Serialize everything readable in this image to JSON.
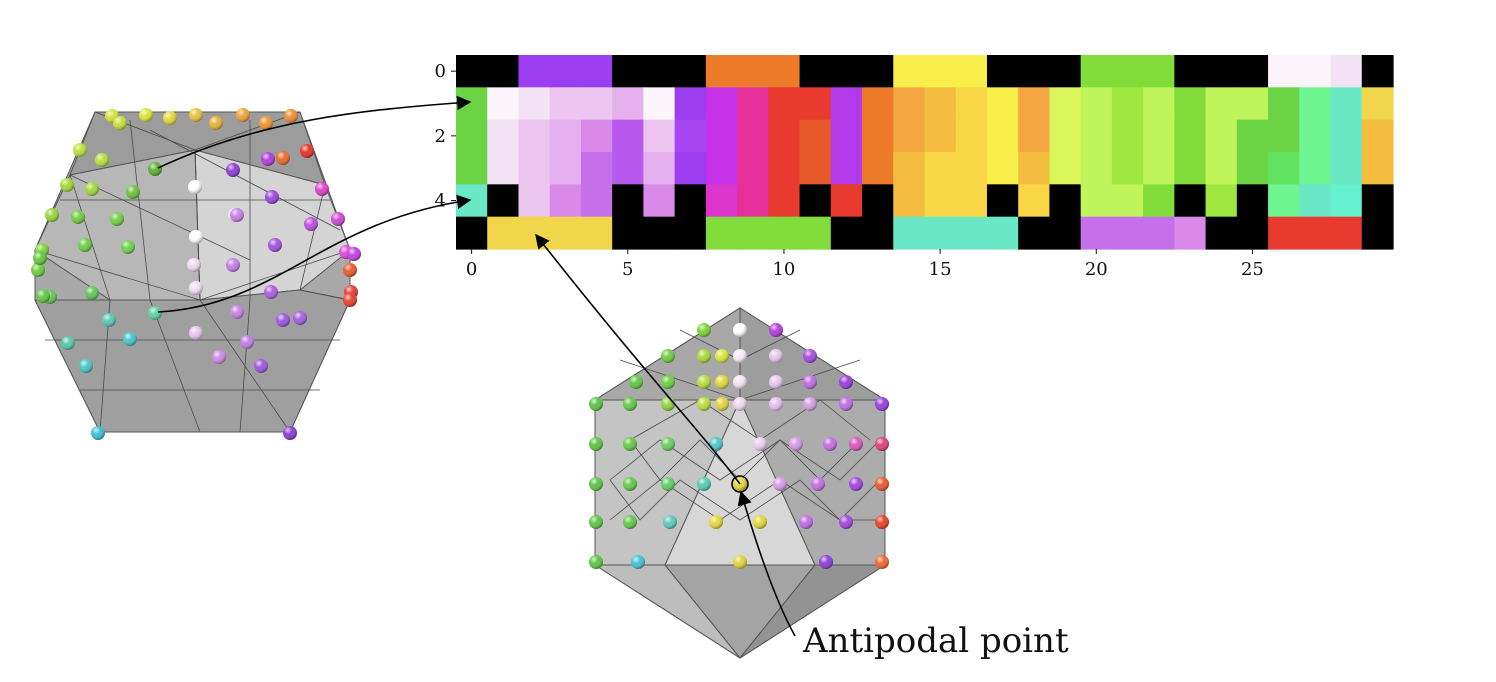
{
  "annotation": {
    "antipodal_label": "Antipodal point"
  },
  "chart_data": {
    "type": "heatmap",
    "cols": 30,
    "rows": 6,
    "x_ticks": [
      0,
      5,
      10,
      15,
      20,
      25
    ],
    "y_ticks": [
      0,
      2,
      4
    ],
    "palette": {
      "K": "#000000",
      "a": "#9b3ef0",
      "b": "#a645f1",
      "c": "#b659ec",
      "d": "#c56fea",
      "e": "#d989e8",
      "f": "#e6b0ef",
      "g": "#ecc6f0",
      "h": "#f3e2f4",
      "i": "#fbf5fb",
      "j": "#b33bea",
      "k": "#c532e8",
      "l": "#dc35ce",
      "m": "#e5309c",
      "n": "#e83a2e",
      "o": "#e85a2a",
      "p": "#ee7b2a",
      "q": "#f4a640",
      "r": "#f5bd40",
      "s": "#f8d646",
      "t": "#f9ef4b",
      "u": "#eef758",
      "v": "#d9f55a",
      "w": "#bff55a",
      "x": "#9fe83f",
      "y": "#82dc3c",
      "z": "#6bd444",
      "A": "#61e35f",
      "B": "#6cf590",
      "C": "#6ae7c5",
      "D": "#66f3cf",
      "E": "#f1d54a"
    },
    "grid": [
      "KKaaaKKKpppKKKtttKKKyyyKKKiihK",
      "zihggfiakmnnjpqrstqvwxwywwzBCE",
      "zhgfecgbkmnojpqrstqvwxwywzzBCr",
      "zhgfdcfakmnojprsstrvwxwywzABCr",
      "CKgedKeKlmnKnKrssKsKwwyKxKBCDK",
      "KEEEEKKKyyyyKKCCCCKKdddeKKnnnK"
    ]
  },
  "left_polyhedron": {
    "dots": [
      {
        "c": "#d6e33a"
      },
      {
        "c": "#d9e43b"
      },
      {
        "c": "#e3d83b"
      },
      {
        "c": "#eac23d"
      },
      {
        "c": "#efa33a"
      },
      {
        "c": "#ef8f33"
      },
      {
        "c": "#bde03c"
      },
      {
        "c": "#c7e03c"
      },
      {
        "c": "#e6b33a"
      },
      {
        "c": "#ee9535"
      },
      {
        "c": "#ec6c2e"
      },
      {
        "c": "#e8342c"
      },
      {
        "c": "#a8d93d"
      },
      {
        "c": "#b7de3d"
      },
      {
        "c": "#5fb02f"
      },
      {
        "c": "#ffffff"
      },
      {
        "c": "#8b3fd9"
      },
      {
        "c": "#b23ee0"
      },
      {
        "c": "#e040c8"
      },
      {
        "c": "#97d63d"
      },
      {
        "c": "#a0d83e"
      },
      {
        "c": "#6ec33b"
      },
      {
        "c": "#f2e6f2"
      },
      {
        "c": "#9b48df"
      },
      {
        "c": "#c04ee0"
      },
      {
        "c": "#7fd23c"
      },
      {
        "c": "#74cf3f"
      },
      {
        "c": "#72cf45"
      },
      {
        "c": "#ffffff"
      },
      {
        "c": "#c782e6"
      },
      {
        "c": "#a552e0"
      },
      {
        "c": "#d249d6"
      },
      {
        "c": "#72cc43"
      },
      {
        "c": "#6dcf4a"
      },
      {
        "c": "#6fd152"
      },
      {
        "c": "#f0d9f0"
      },
      {
        "c": "#c37ee5"
      },
      {
        "c": "#b15ee0"
      },
      {
        "c": "#65c652"
      },
      {
        "c": "#63c85a"
      },
      {
        "c": "#5ed2a8"
      },
      {
        "c": "#f3def3"
      },
      {
        "c": "#c885e5"
      },
      {
        "c": "#a860e0"
      },
      {
        "c": "#e24040"
      },
      {
        "c": "#57c7ac"
      },
      {
        "c": "#5ac9b3"
      },
      {
        "c": "#e9c6ee"
      },
      {
        "c": "#c47ee6"
      },
      {
        "c": "#9d58de"
      },
      {
        "c": "#4cc7c4"
      },
      {
        "c": "#48c5cf"
      },
      {
        "c": "#d08ae8"
      },
      {
        "c": "#a058de"
      },
      {
        "c": "#3cc0d6"
      },
      {
        "c": "#8b3ed8"
      },
      {
        "c": "#63c93e"
      },
      {
        "c": "#62c84a"
      },
      {
        "c": "#ee5a2e"
      },
      {
        "c": "#e9432c"
      },
      {
        "c": "#d94fd8"
      },
      {
        "c": "#c63fe0"
      }
    ]
  },
  "bottom_polyhedron": {
    "dots": [
      {
        "c": "#7fd23c"
      },
      {
        "c": "#c4e03c"
      },
      {
        "c": "#ffffff"
      },
      {
        "c": "#b23ee0"
      },
      {
        "c": "#6fcf40"
      },
      {
        "c": "#a8d93d"
      },
      {
        "c": "#d9e43b"
      },
      {
        "c": "#f5e8f5"
      },
      {
        "c": "#e8c8ee"
      },
      {
        "c": "#a54de0"
      },
      {
        "c": "#64c94a"
      },
      {
        "c": "#6fcf40"
      },
      {
        "c": "#b7de3d"
      },
      {
        "c": "#e2d83b"
      },
      {
        "c": "#f2e4f2"
      },
      {
        "c": "#e8c8ee"
      },
      {
        "c": "#c06ee5"
      },
      {
        "c": "#9a40de"
      },
      {
        "c": "#5fc546"
      },
      {
        "c": "#64c94a"
      },
      {
        "c": "#8fd43d"
      },
      {
        "c": "#b9de3d"
      },
      {
        "c": "#e0d43e"
      },
      {
        "c": "#efd7f0"
      },
      {
        "c": "#e4c0ee"
      },
      {
        "c": "#d4a0e8"
      },
      {
        "c": "#bd6ee4"
      },
      {
        "c": "#9a40de"
      },
      {
        "c": "#5fc546"
      },
      {
        "c": "#64c94a"
      },
      {
        "c": "#6dcf63"
      },
      {
        "c": "#58c9b0"
      },
      {
        "c": "#4fc7c8"
      },
      {
        "c": "#eccdf0"
      },
      {
        "c": "#d79ae8"
      },
      {
        "c": "#c66fe3"
      },
      {
        "c": "#d958c0"
      },
      {
        "c": "#e0407c"
      },
      {
        "c": "#5fc546"
      },
      {
        "c": "#64c94a"
      },
      {
        "c": "#66cd6a"
      },
      {
        "c": "#58c9b0"
      },
      {
        "c": "#e2d63b"
      },
      {
        "c": "#d99ae8"
      },
      {
        "c": "#c66fe3"
      },
      {
        "c": "#a548de"
      },
      {
        "c": "#ea5a2e"
      },
      {
        "c": "#5fc546"
      },
      {
        "c": "#64c94a"
      },
      {
        "c": "#5ccab8"
      },
      {
        "c": "#e4d83a"
      },
      {
        "c": "#e2d83b"
      },
      {
        "c": "#c06ee5"
      },
      {
        "c": "#a548de"
      },
      {
        "c": "#e8432c"
      },
      {
        "c": "#5fc546"
      },
      {
        "c": "#46c3d4"
      },
      {
        "c": "#e0d43b"
      },
      {
        "c": "#8f3fd8"
      },
      {
        "c": "#ee6a2e"
      }
    ]
  }
}
